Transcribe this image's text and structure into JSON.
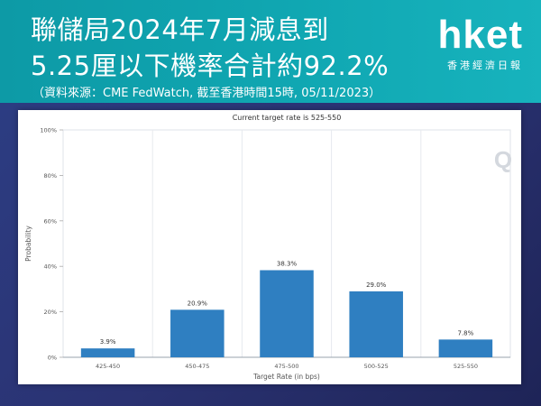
{
  "banner": {
    "title_line1": "聯儲局2024年7月減息到",
    "title_line2": "5.25厘以下機率合計約92.2%",
    "source": "（資料來源：CME FedWatch, 截至香港時間15時, 05/11/2023）"
  },
  "logo": {
    "main": "hket",
    "sub": "香港經濟日報",
    "watermark": "Q"
  },
  "colors": {
    "banner": "#10a7b2",
    "background": "#2a3272",
    "bar": "#2f7fc1"
  },
  "chart_data": {
    "type": "bar",
    "title": "Current target rate is 525-550",
    "xlabel": "Target Rate (in bps)",
    "ylabel": "Probability",
    "categories": [
      "425-450",
      "450-475",
      "475-500",
      "500-525",
      "525-550"
    ],
    "values": [
      3.9,
      20.9,
      38.3,
      29.0,
      7.8
    ],
    "data_labels": [
      "3.9%",
      "20.9%",
      "38.3%",
      "29.0%",
      "7.8%"
    ],
    "ylim": [
      0,
      100
    ],
    "yticks": [
      0,
      20,
      40,
      60,
      80,
      100
    ],
    "ytick_labels": [
      "0%",
      "20%",
      "40%",
      "60%",
      "80%",
      "100%"
    ],
    "grid": "vertical",
    "legend": "none"
  }
}
